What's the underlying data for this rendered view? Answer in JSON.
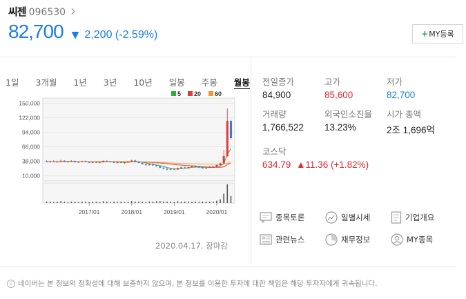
{
  "stock": {
    "name": "씨젠",
    "code": "096530",
    "price": "82,700",
    "change": "2,200",
    "change_pct": "(-2.59%)",
    "direction": "down"
  },
  "my_button": {
    "plus": "+",
    "label": "MY등록"
  },
  "tabs": [
    {
      "label": "1일",
      "active": false
    },
    {
      "label": "3개월",
      "active": false
    },
    {
      "label": "1년",
      "active": false
    },
    {
      "label": "3년",
      "active": false
    },
    {
      "label": "10년",
      "active": false
    },
    {
      "label": "일봉",
      "active": false
    },
    {
      "label": "주봉",
      "active": false
    },
    {
      "label": "월봉",
      "active": true
    }
  ],
  "chart_data": {
    "type": "candlestick",
    "interval": "monthly",
    "y_ticks": [
      "150,000",
      "122,000",
      "94,000",
      "66,000",
      "38,000",
      "10,000"
    ],
    "y_tick_values": [
      150000,
      122000,
      94000,
      66000,
      38000,
      10000
    ],
    "ylim": [
      0,
      160000
    ],
    "x_ticks": [
      "2017/01",
      "2018/01",
      "2019/01",
      "2020/01"
    ],
    "x_tick_index": [
      12,
      24,
      36,
      48
    ],
    "legend": [
      {
        "label": "5",
        "color": "#2fae3a"
      },
      {
        "label": "20",
        "color": "#e23b3b"
      },
      {
        "label": "60",
        "color": "#f0963a"
      }
    ],
    "colors": {
      "up": "#e23b3b",
      "down": "#3a7bd5"
    },
    "candles": [
      [
        38000,
        40000,
        36000,
        37000
      ],
      [
        37000,
        39000,
        35000,
        38000
      ],
      [
        38000,
        40000,
        36000,
        36500
      ],
      [
        36500,
        38500,
        34500,
        37500
      ],
      [
        37500,
        41000,
        36000,
        39000
      ],
      [
        39000,
        40000,
        36000,
        36800
      ],
      [
        36800,
        38000,
        35000,
        37600
      ],
      [
        37600,
        40000,
        36500,
        38500
      ],
      [
        38500,
        39500,
        35500,
        36200
      ],
      [
        36200,
        37500,
        34800,
        36900
      ],
      [
        36900,
        39000,
        35800,
        38300
      ],
      [
        38300,
        39500,
        36000,
        36500
      ],
      [
        36500,
        37500,
        34500,
        35800
      ],
      [
        35800,
        37000,
        34000,
        36400
      ],
      [
        36400,
        38000,
        35000,
        35500
      ],
      [
        35500,
        37000,
        33800,
        36500
      ],
      [
        36500,
        39500,
        35500,
        38800
      ],
      [
        38800,
        40500,
        37000,
        37500
      ],
      [
        37500,
        38500,
        35500,
        36200
      ],
      [
        36200,
        37500,
        34500,
        35600
      ],
      [
        35600,
        36800,
        33500,
        36100
      ],
      [
        36100,
        37500,
        34500,
        35000
      ],
      [
        35000,
        36500,
        33000,
        35800
      ],
      [
        35800,
        38000,
        34800,
        37200
      ],
      [
        37200,
        41000,
        36500,
        39500
      ],
      [
        39500,
        41000,
        36000,
        36800
      ],
      [
        36800,
        38500,
        34000,
        34700
      ],
      [
        34700,
        36000,
        31500,
        32200
      ],
      [
        32200,
        33800,
        29500,
        30500
      ],
      [
        30500,
        33500,
        29800,
        32800
      ],
      [
        32800,
        34200,
        29500,
        30100
      ],
      [
        30100,
        31200,
        27500,
        28300
      ],
      [
        28300,
        29500,
        24500,
        25600
      ],
      [
        25600,
        27200,
        22800,
        23500
      ],
      [
        23500,
        25000,
        20500,
        21800
      ],
      [
        21800,
        24000,
        20500,
        23200
      ],
      [
        23200,
        24800,
        21000,
        21900
      ],
      [
        21900,
        25500,
        21200,
        24600
      ],
      [
        24600,
        26800,
        23800,
        26200
      ],
      [
        26200,
        27500,
        24300,
        25200
      ],
      [
        25200,
        27200,
        24000,
        26600
      ],
      [
        26600,
        29200,
        25800,
        28400
      ],
      [
        28400,
        30000,
        26200,
        27000
      ],
      [
        27000,
        28200,
        24800,
        25800
      ],
      [
        25800,
        27000,
        23500,
        24400
      ],
      [
        24400,
        26000,
        23000,
        25500
      ],
      [
        25500,
        28500,
        24800,
        27800
      ],
      [
        27800,
        29800,
        26200,
        26800
      ],
      [
        26800,
        31500,
        26000,
        30600
      ],
      [
        30600,
        35500,
        28500,
        34000
      ],
      [
        34000,
        60000,
        32000,
        48000
      ],
      [
        48000,
        140000,
        46000,
        116000
      ],
      [
        116000,
        118000,
        80000,
        82700
      ]
    ],
    "volumes": [
      3,
      3,
      2,
      3,
      4,
      3,
      2,
      3,
      3,
      2,
      3,
      3,
      2,
      3,
      3,
      2,
      4,
      3,
      2,
      3,
      2,
      3,
      2,
      3,
      4,
      3,
      3,
      3,
      2,
      3,
      3,
      4,
      4,
      3,
      3,
      3,
      2,
      4,
      3,
      3,
      3,
      3,
      3,
      2,
      3,
      3,
      3,
      3,
      5,
      8,
      20,
      40,
      15
    ]
  },
  "timestamp": "2020.04.17. 장마감",
  "info": {
    "prev_close": {
      "label": "전일종가",
      "value": "84,900"
    },
    "high": {
      "label": "고가",
      "value": "85,600"
    },
    "low": {
      "label": "저가",
      "value": "82,700"
    },
    "volume": {
      "label": "거래량",
      "value": "1,766,522"
    },
    "foreign_ratio": {
      "label": "외국인소진율",
      "value": "13.23%"
    },
    "market_cap": {
      "label": "시가 총액",
      "value": "2조 1,696억"
    },
    "index": {
      "label": "코스닥",
      "value": "634.79",
      "change": "▲11.36 (+1.82%)"
    }
  },
  "links": [
    {
      "label": "종목토론",
      "icon": "chat-icon"
    },
    {
      "label": "일별시세",
      "icon": "trend-icon"
    },
    {
      "label": "기업개요",
      "icon": "document-icon"
    },
    {
      "label": "관련뉴스",
      "icon": "news-icon"
    },
    {
      "label": "재무정보",
      "icon": "pie-icon"
    },
    {
      "label": "MY종목",
      "icon": "user-icon"
    }
  ],
  "disclaimer": {
    "icon_glyph": "i",
    "text": "네이버는 본 정보의 정확성에 대해 보증하지 않으며, 본 정보를 이용한 투자에 대한 책임은 해당 투자자에게 귀속됩니다."
  }
}
